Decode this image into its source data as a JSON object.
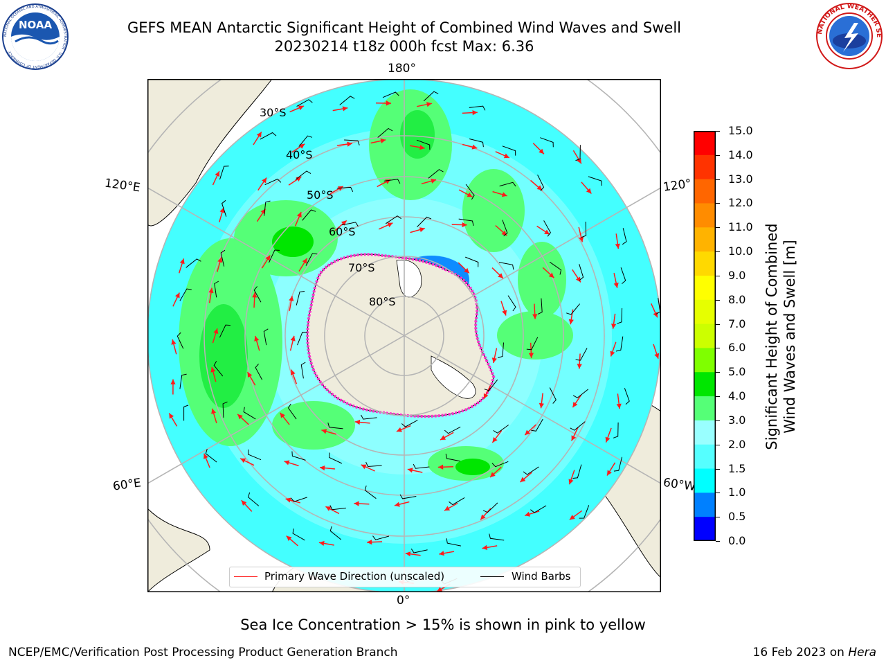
{
  "title": {
    "line1": "GEFS MEAN Antarctic Significant Height of Combined Wind Waves and Swell",
    "line2": "20230214 t18z 000h fcst   Max: 6.36"
  },
  "logos": {
    "noaa": {
      "text": "NOAA",
      "ring_text": "NATIONAL OCEANIC AND ATMOSPHERIC ADMINISTRATION · U.S. DEPARTMENT OF COMMERCE"
    },
    "nws": {
      "ring_text": "NATIONAL WEATHER SERVICE"
    }
  },
  "map": {
    "longitude_labels": {
      "top": "180°",
      "bottom": "0°",
      "upper_left": "120°E",
      "upper_right": "120°",
      "lower_left": "60°E",
      "lower_right": "60°W"
    },
    "latitude_labels": [
      "30°S",
      "40°S",
      "50°S",
      "60°S",
      "70°S",
      "80°S"
    ],
    "projection": "south polar stereographic",
    "colors": {
      "ocean_fill": "#44ffff",
      "land": "#efecdc",
      "sea_ice": "#ff33cc",
      "wave_arrow": "#ff1a1a",
      "wind_barb": "#000000",
      "graticule": "#b5b5b5"
    }
  },
  "legend": {
    "primary_wave": "Primary Wave Direction (unscaled)",
    "wind_barbs": "Wind Barbs"
  },
  "colorbar": {
    "label_line1": "Significant Height of Combined",
    "label_line2": "Wind Waves and Swell [m]",
    "ticks": [
      "15.0",
      "14.0",
      "13.0",
      "12.0",
      "11.0",
      "10.0",
      "9.0",
      "8.0",
      "7.0",
      "6.0",
      "5.0",
      "4.0",
      "3.0",
      "2.0",
      "1.5",
      "1.0",
      "0.5",
      "0.0"
    ],
    "colors": [
      "#ff0000",
      "#ff3300",
      "#ff6600",
      "#ff8c00",
      "#ffb300",
      "#ffd900",
      "#ffff00",
      "#e6ff00",
      "#ccff00",
      "#7fff00",
      "#00e600",
      "#55ff77",
      "#99ffff",
      "#55ffff",
      "#00ffff",
      "#0080ff",
      "#0000ff"
    ]
  },
  "footer": {
    "note": "Sea Ice Concentration > 15% is shown in pink to yellow",
    "left": "NCEP/EMC/Verification Post Processing Product Generation Branch",
    "right_date": "16 Feb 2023 on ",
    "right_host": "Hera"
  }
}
